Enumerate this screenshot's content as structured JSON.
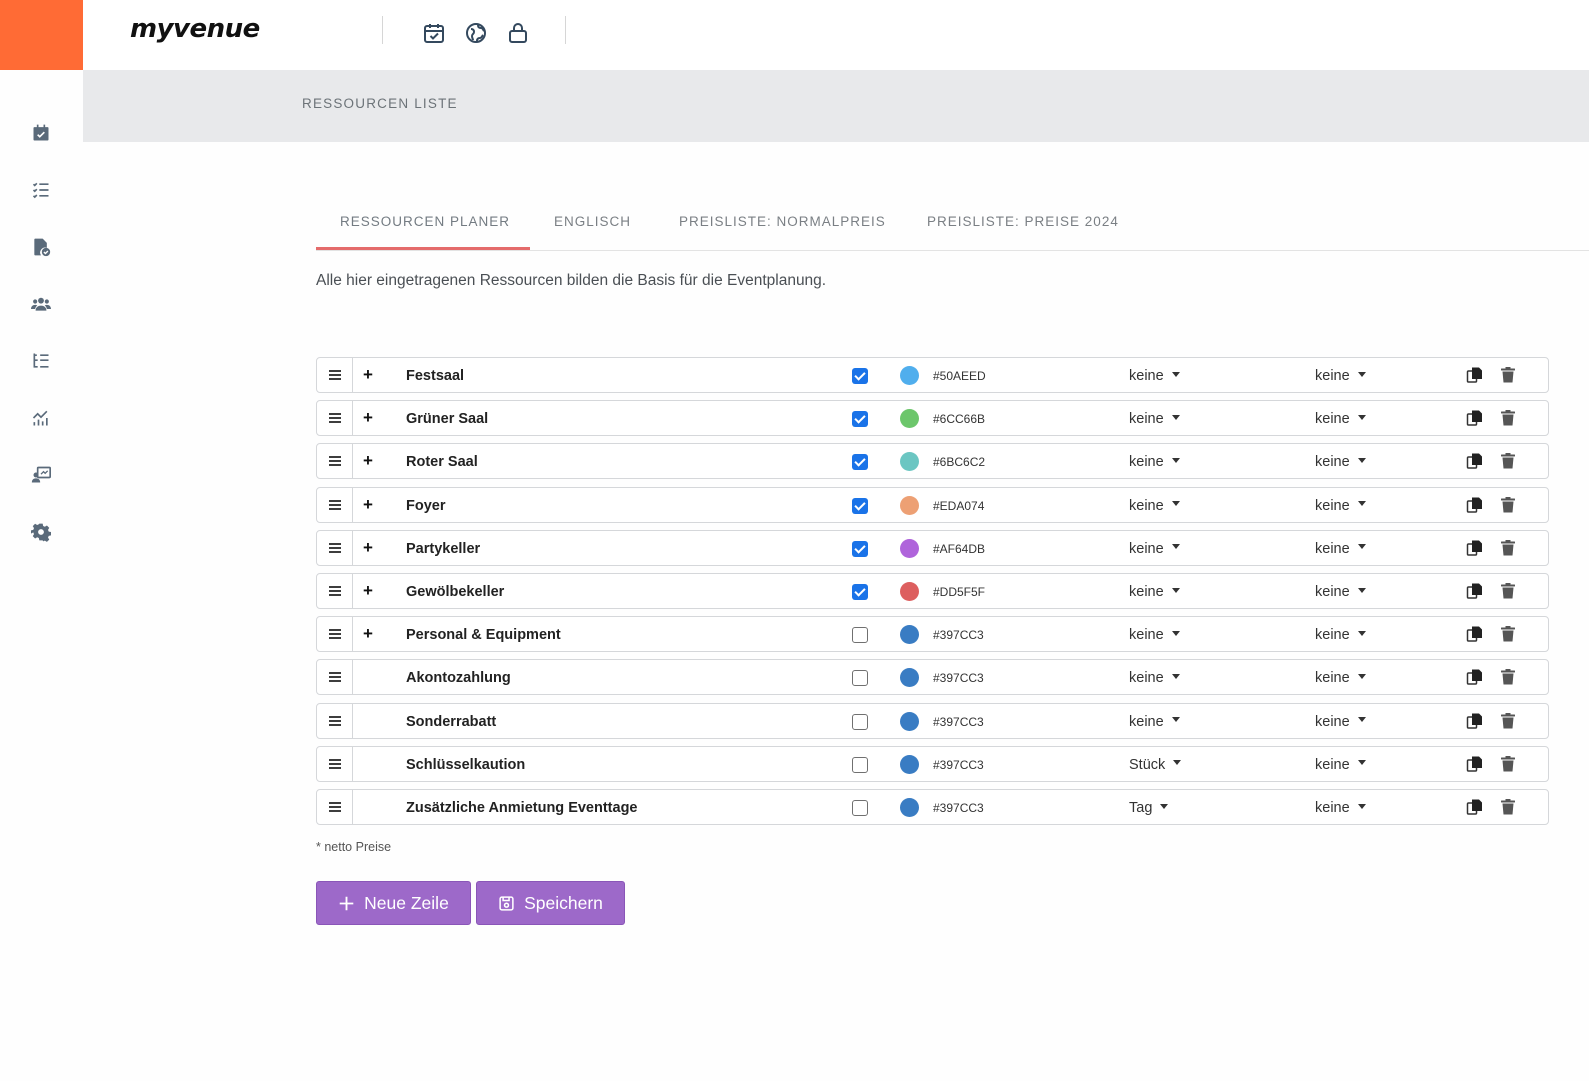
{
  "header": {
    "logo": "myvenue",
    "top_icons": [
      "calendar-check-icon",
      "globe-icon",
      "lock-icon"
    ]
  },
  "sidebar": {
    "items": [
      {
        "icon": "calendar-check-icon"
      },
      {
        "icon": "checklist-icon"
      },
      {
        "icon": "document-check-icon"
      },
      {
        "icon": "users-icon"
      },
      {
        "icon": "tree-list-icon"
      },
      {
        "icon": "chart-icon"
      },
      {
        "icon": "presentation-icon"
      },
      {
        "icon": "gear-icon"
      }
    ]
  },
  "subheader": {
    "title": "RESSOURCEN LISTE"
  },
  "tabs": [
    {
      "label": "RESSOURCEN PLANER",
      "active": true
    },
    {
      "label": "ENGLISCH",
      "active": false
    },
    {
      "label": "PREISLISTE: NORMALPREIS",
      "active": false
    },
    {
      "label": "PREISLISTE: PREISE 2024",
      "active": false
    }
  ],
  "intro": "Alle hier eingetragenen Ressourcen bilden die Basis für die Eventplanung.",
  "resources": [
    {
      "name": "Festsaal",
      "expandable": true,
      "plus": "+",
      "checked": true,
      "color": "#50AEED",
      "hex": "#50AEED",
      "unit": "keine",
      "option": "keine"
    },
    {
      "name": "Grüner Saal",
      "expandable": true,
      "plus": "+",
      "checked": true,
      "color": "#6CC66B",
      "hex": "#6CC66B",
      "unit": "keine",
      "option": "keine"
    },
    {
      "name": "Roter Saal",
      "expandable": true,
      "plus": "+",
      "checked": true,
      "color": "#6BC6C2",
      "hex": "#6BC6C2",
      "unit": "keine",
      "option": "keine"
    },
    {
      "name": "Foyer",
      "expandable": true,
      "plus": "+",
      "checked": true,
      "color": "#EDA074",
      "hex": "#EDA074",
      "unit": "keine",
      "option": "keine"
    },
    {
      "name": "Partykeller",
      "expandable": true,
      "plus": "+",
      "checked": true,
      "color": "#AF64DB",
      "hex": "#AF64DB",
      "unit": "keine",
      "option": "keine"
    },
    {
      "name": "Gewölbekeller",
      "expandable": true,
      "plus": "+",
      "checked": true,
      "color": "#DD5F5F",
      "hex": "#DD5F5F",
      "unit": "keine",
      "option": "keine"
    },
    {
      "name": "Personal & Equipment",
      "expandable": true,
      "plus": "+",
      "checked": false,
      "color": "#397CC3",
      "hex": "#397CC3",
      "unit": "keine",
      "option": "keine"
    },
    {
      "name": "Akontozahlung",
      "expandable": false,
      "plus": "",
      "checked": false,
      "color": "#397CC3",
      "hex": "#397CC3",
      "unit": "keine",
      "option": "keine"
    },
    {
      "name": "Sonderrabatt",
      "expandable": false,
      "plus": "",
      "checked": false,
      "color": "#397CC3",
      "hex": "#397CC3",
      "unit": "keine",
      "option": "keine"
    },
    {
      "name": "Schlüsselkaution",
      "expandable": false,
      "plus": "",
      "checked": false,
      "color": "#397CC3",
      "hex": "#397CC3",
      "unit": "Stück",
      "option": "keine"
    },
    {
      "name": "Zusätzliche Anmietung Eventtage",
      "expandable": false,
      "plus": "",
      "checked": false,
      "color": "#397CC3",
      "hex": "#397CC3",
      "unit": "Tag",
      "option": "keine"
    }
  ],
  "note": "* netto Preise",
  "buttons": {
    "new_row": "Neue Zeile",
    "save": "Speichern"
  },
  "colors": {
    "brand": "#ff6b35",
    "accent_tab": "#e46b6b",
    "button": "#9d69c9",
    "checkbox": "#1a73e8"
  }
}
